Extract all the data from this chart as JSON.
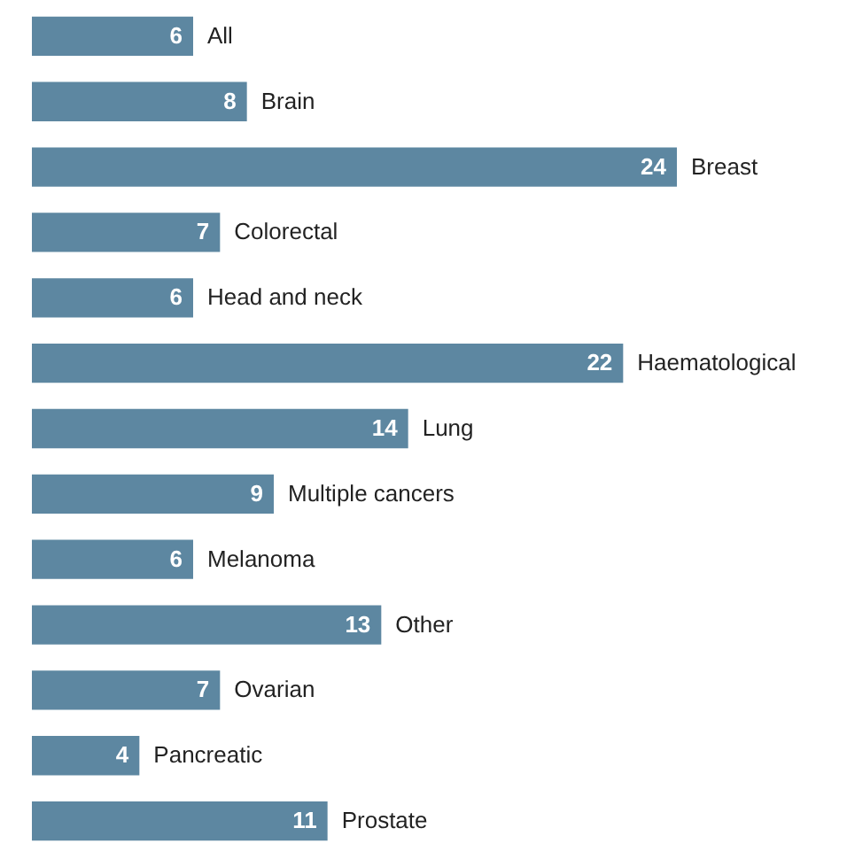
{
  "chart_data": {
    "type": "bar",
    "orientation": "horizontal",
    "data_labels": true,
    "color": "#5d87a1",
    "categories": [
      "All",
      "Brain",
      "Breast",
      "Colorectal",
      "Head and neck",
      "Haematological",
      "Lung",
      "Multiple cancers",
      "Melanoma",
      "Other",
      "Ovarian",
      "Pancreatic",
      "Prostate"
    ],
    "values": [
      6,
      8,
      24,
      7,
      6,
      22,
      14,
      9,
      6,
      13,
      7,
      4,
      11
    ]
  }
}
